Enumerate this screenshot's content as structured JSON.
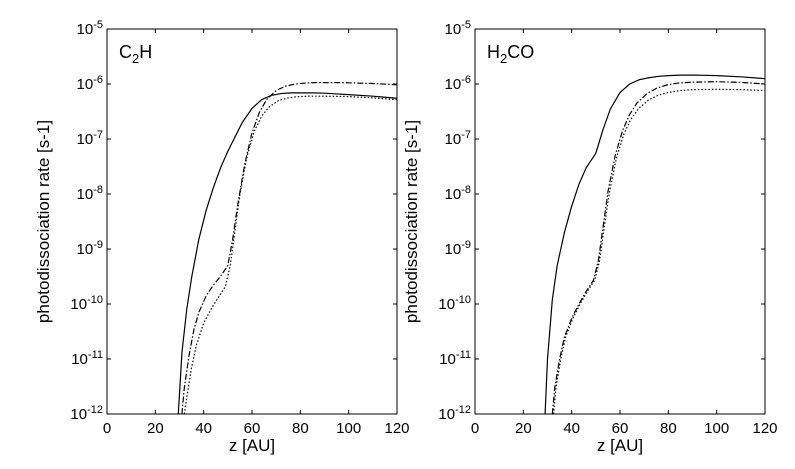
{
  "chart_data": [
    {
      "type": "line",
      "title_parts": [
        "C",
        "2",
        "H"
      ],
      "xlabel": "z [AU]",
      "ylabel": "photodissociation rate [s-1]",
      "xlim": [
        0,
        120
      ],
      "ylim_log10": [
        -12,
        -5
      ],
      "log_y": true,
      "x_ticks": [
        "0",
        "20",
        "40",
        "60",
        "80",
        "100",
        "120"
      ],
      "y_ticks": [
        {
          "base": "10",
          "exp": "-12"
        },
        {
          "base": "10",
          "exp": "-11"
        },
        {
          "base": "10",
          "exp": "-10"
        },
        {
          "base": "10",
          "exp": "-9"
        },
        {
          "base": "10",
          "exp": "-8"
        },
        {
          "base": "10",
          "exp": "-7"
        },
        {
          "base": "10",
          "exp": "-6"
        },
        {
          "base": "10",
          "exp": "-5"
        }
      ],
      "series": [
        {
          "style": "solid",
          "x": [
            29.5,
            31,
            33,
            35,
            38,
            41,
            44,
            47,
            50,
            53,
            56,
            60,
            64,
            68,
            72,
            76,
            80,
            85,
            90,
            95,
            100,
            110,
            120
          ],
          "y": [
            1e-12,
            1.3e-11,
            8e-11,
            3e-10,
            1.5e-09,
            5e-09,
            1.3e-08,
            3e-08,
            6e-08,
            1.1e-07,
            2e-07,
            3.6e-07,
            5.2e-07,
            6.2e-07,
            6.7e-07,
            6.9e-07,
            6.9e-07,
            6.9e-07,
            6.8e-07,
            6.6e-07,
            6.4e-07,
            6e-07,
            5.5e-07
          ]
        },
        {
          "style": "dashdot",
          "x": [
            31,
            32,
            34,
            36,
            38,
            41,
            44,
            47,
            50,
            52,
            54,
            57,
            60,
            63,
            66,
            70,
            74,
            78,
            82,
            86,
            90,
            95,
            100,
            110,
            120
          ],
          "y": [
            1e-12,
            3e-12,
            1.2e-11,
            3.5e-11,
            7e-11,
            1.4e-10,
            2.2e-10,
            3.2e-10,
            5e-10,
            1.5e-09,
            6e-09,
            3.5e-08,
            1.3e-07,
            3e-07,
            5.2e-07,
            7.6e-07,
            9.2e-07,
            1e-06,
            1.04e-06,
            1.06e-06,
            1.06e-06,
            1.06e-06,
            1.05e-06,
            1.02e-06,
            9.7e-07
          ]
        },
        {
          "style": "dotted",
          "x": [
            32,
            33,
            35,
            37,
            40,
            43,
            46,
            49,
            51,
            53,
            55,
            58,
            61,
            64,
            67,
            71,
            75,
            79,
            84,
            90,
            100,
            110,
            120
          ],
          "y": [
            1e-12,
            2e-12,
            7e-12,
            1.8e-11,
            4.5e-11,
            8e-11,
            1.3e-10,
            2.1e-10,
            5e-10,
            2.2e-09,
            1e-08,
            5e-08,
            1.4e-07,
            2.6e-07,
            3.8e-07,
            5e-07,
            5.6e-07,
            5.9e-07,
            6e-07,
            6e-07,
            5.9e-07,
            5.6e-07,
            5.2e-07
          ]
        }
      ]
    },
    {
      "type": "line",
      "title_parts": [
        "H",
        "2",
        "CO"
      ],
      "xlabel": "z [AU]",
      "ylabel": "photodissociation rate [s-1]",
      "xlim": [
        0,
        120
      ],
      "ylim_log10": [
        -12,
        -5
      ],
      "log_y": true,
      "x_ticks": [
        "0",
        "20",
        "40",
        "60",
        "80",
        "100",
        "120"
      ],
      "y_ticks": [
        {
          "base": "10",
          "exp": "-12"
        },
        {
          "base": "10",
          "exp": "-11"
        },
        {
          "base": "10",
          "exp": "-10"
        },
        {
          "base": "10",
          "exp": "-9"
        },
        {
          "base": "10",
          "exp": "-8"
        },
        {
          "base": "10",
          "exp": "-7"
        },
        {
          "base": "10",
          "exp": "-6"
        },
        {
          "base": "10",
          "exp": "-5"
        }
      ],
      "series": [
        {
          "style": "solid",
          "x": [
            29,
            30,
            32,
            34,
            37,
            40,
            43,
            46,
            50,
            53,
            56,
            60,
            64,
            68,
            72,
            76,
            80,
            85,
            90,
            95,
            100,
            110,
            120
          ],
          "y": [
            1e-12,
            1e-11,
            1.2e-10,
            5e-10,
            2e-09,
            6e-09,
            1.5e-08,
            3e-08,
            5.5e-08,
            1.5e-07,
            3.5e-07,
            7e-07,
            1e-06,
            1.2e-06,
            1.3e-06,
            1.38e-06,
            1.42e-06,
            1.45e-06,
            1.45e-06,
            1.44e-06,
            1.42e-06,
            1.35e-06,
            1.25e-06
          ]
        },
        {
          "style": "dashdot",
          "x": [
            32,
            33,
            35,
            37,
            40,
            43,
            46,
            49,
            51,
            53,
            55,
            58,
            61,
            64,
            67,
            71,
            75,
            79,
            84,
            90,
            100,
            110,
            120
          ],
          "y": [
            1e-12,
            3e-12,
            1e-11,
            2.5e-11,
            5.5e-11,
            1e-10,
            1.7e-10,
            2.7e-10,
            6e-10,
            2.5e-09,
            1.1e-08,
            5e-08,
            1.4e-07,
            2.8e-07,
            4.5e-07,
            6.6e-07,
            8.3e-07,
            9.5e-07,
            1.04e-06,
            1.08e-06,
            1.1e-06,
            1.07e-06,
            1e-06
          ]
        },
        {
          "style": "dotted",
          "x": [
            32.5,
            33.5,
            35.5,
            37.5,
            40.5,
            43.5,
            46.5,
            49.5,
            51.5,
            53.5,
            55.5,
            58.5,
            61.5,
            64.5,
            68,
            72,
            76,
            80,
            85,
            90,
            100,
            110,
            120
          ],
          "y": [
            1e-12,
            3e-12,
            1e-11,
            2.5e-11,
            5.5e-11,
            1e-10,
            1.7e-10,
            2.7e-10,
            6e-10,
            2.5e-09,
            1e-08,
            4.5e-08,
            1.2e-07,
            2.3e-07,
            3.7e-07,
            5.2e-07,
            6.3e-07,
            7e-07,
            7.6e-07,
            7.9e-07,
            8e-07,
            7.9e-07,
            7.6e-07
          ]
        }
      ]
    }
  ]
}
